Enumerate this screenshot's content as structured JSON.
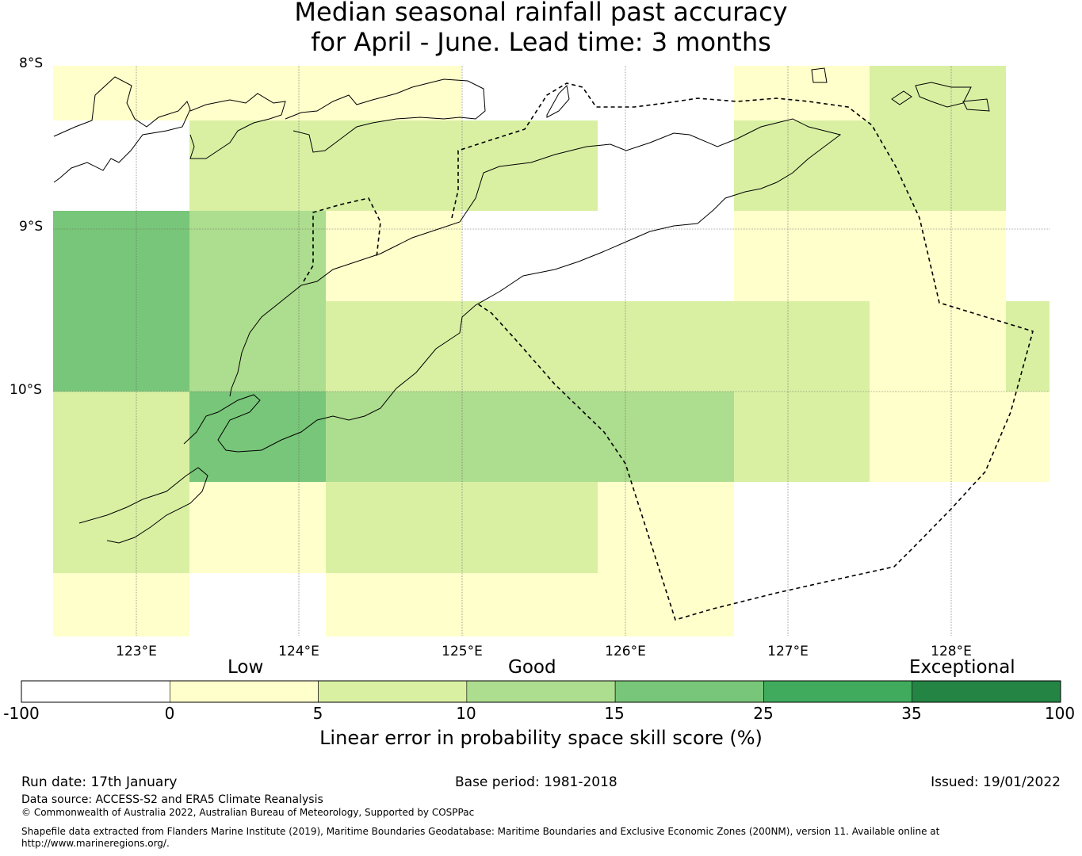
{
  "title": {
    "line1": "Median seasonal rainfall past accuracy",
    "line2": "for April - June. Lead time: 3 months"
  },
  "map": {
    "lat_labels": [
      "8°S",
      "9°S",
      "10°S"
    ],
    "lon_labels": [
      "123°E",
      "124°E",
      "125°E",
      "126°E",
      "127°E",
      "128°E"
    ]
  },
  "colorbar": {
    "categories": [
      "Low",
      "Good",
      "Exceptional"
    ],
    "ticks": [
      "-100",
      "0",
      "5",
      "10",
      "15",
      "25",
      "35",
      "100"
    ],
    "colors": [
      "#ffffff",
      "#ffffcc",
      "#d9f0a3",
      "#addd8e",
      "#78c679",
      "#41ab5d",
      "#238443"
    ],
    "label": "Linear error in probability space skill score (%)"
  },
  "grid_cells": [
    {
      "row": 0,
      "cols": [
        0,
        1,
        2
      ],
      "category": 1
    },
    {
      "row": 0,
      "cols": [
        5
      ],
      "category": 1
    },
    {
      "row": 0,
      "cols": [
        6
      ],
      "category": 2
    },
    {
      "row": 1,
      "cols": [
        1,
        2,
        3
      ],
      "category": 2
    },
    {
      "row": 1,
      "cols": [
        5,
        6
      ],
      "category": 2
    },
    {
      "row": 2,
      "cols": [
        0
      ],
      "category": 4
    },
    {
      "row": 2,
      "cols": [
        1
      ],
      "category": 3
    },
    {
      "row": 2,
      "cols": [
        2
      ],
      "category": 1
    },
    {
      "row": 2,
      "cols": [
        5,
        6
      ],
      "category": 1
    },
    {
      "row": 3,
      "cols": [
        0
      ],
      "category": 4
    },
    {
      "row": 3,
      "cols": [
        1
      ],
      "category": 3
    },
    {
      "row": 3,
      "cols": [
        2,
        3,
        4,
        5
      ],
      "category": 2
    },
    {
      "row": 3,
      "cols": [
        6
      ],
      "category": 1
    },
    {
      "row": 3,
      "cols": [
        7
      ],
      "category": 2
    },
    {
      "row": 4,
      "cols": [
        0
      ],
      "category": 2
    },
    {
      "row": 4,
      "cols": [
        1
      ],
      "category": 4
    },
    {
      "row": 4,
      "cols": [
        2,
        3,
        4
      ],
      "category": 3
    },
    {
      "row": 4,
      "cols": [
        5
      ],
      "category": 2
    },
    {
      "row": 4,
      "cols": [
        6,
        7
      ],
      "category": 1
    },
    {
      "row": 5,
      "cols": [
        0
      ],
      "category": 2
    },
    {
      "row": 5,
      "cols": [
        1
      ],
      "category": 1
    },
    {
      "row": 5,
      "cols": [
        2,
        3
      ],
      "category": 2
    },
    {
      "row": 5,
      "cols": [
        4
      ],
      "category": 1
    },
    {
      "row": 6,
      "cols": [
        0
      ],
      "category": 1
    },
    {
      "row": 6,
      "cols": [
        2,
        3,
        4
      ],
      "category": 1
    }
  ],
  "footer": {
    "run_date": "Run date: 17th January",
    "base_period": "Base period: 1981-2018",
    "issued": "Issued: 19/01/2022",
    "data_source": "Data source: ACCESS-S2 and ERA5 Climate Reanalysis",
    "copyright": "© Commonwealth of Australia 2022, Australian Bureau of Meteorology, Supported by COSPPac",
    "shapefile_line1": "Shapefile data extracted from Flanders Marine Institute (2019), Maritime Boundaries Geodatabase: Maritime Boundaries and Exclusive Economic Zones (200NM), version 11. Available online at",
    "shapefile_line2": "http://www.marineregions.org/."
  }
}
